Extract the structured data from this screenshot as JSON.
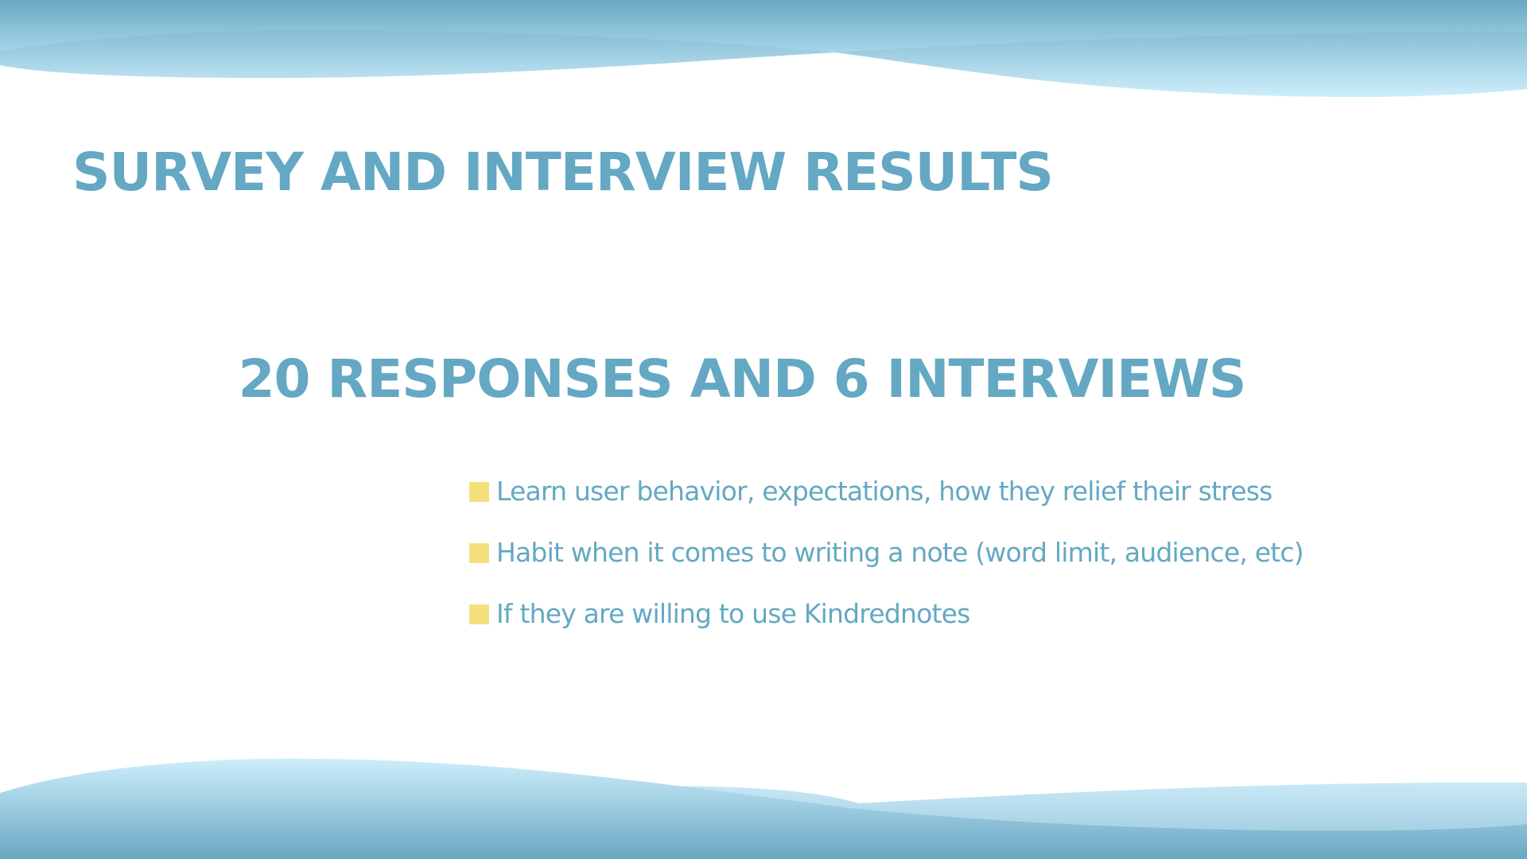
{
  "slide": {
    "title": "SURVEY AND INTERVIEW RESULTS",
    "headline": "20 RESPONSES AND 6 INTERVIEWS",
    "bullets": [
      "Learn user behavior, expectations, how they relief their stress",
      "Habit when it comes to writing a note (word limit, audience, etc)",
      "If they are willing to use Kindrednotes"
    ]
  },
  "colors": {
    "text": "#64a8c3",
    "bullet_marker": "#f5e07e",
    "wave_dark": "#67a5c0",
    "wave_light": "#cfeefa",
    "background": "#ffffff"
  }
}
